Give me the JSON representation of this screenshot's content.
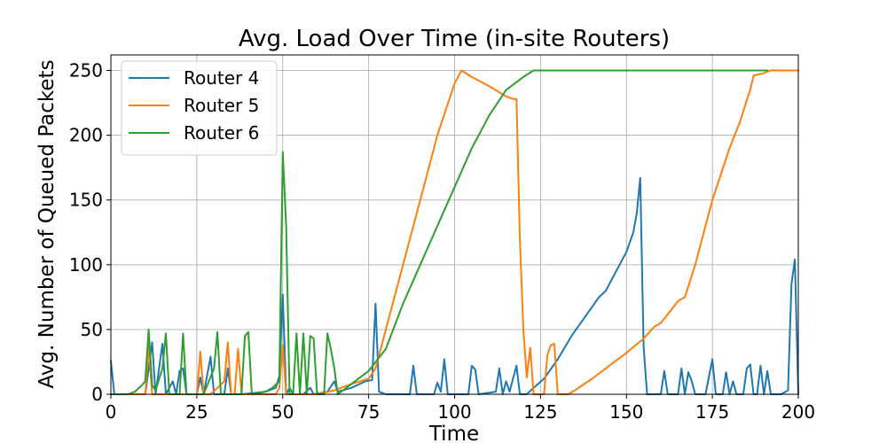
{
  "chart_data": {
    "type": "line",
    "title": "Avg. Load Over Time (in-site Routers)",
    "xlabel": "Time",
    "ylabel": "Avg. Number of Queued Packets",
    "xlim": [
      0,
      200
    ],
    "ylim": [
      0,
      262
    ],
    "x_ticks": [
      0,
      25,
      50,
      75,
      100,
      125,
      150,
      175,
      200
    ],
    "y_ticks": [
      0,
      50,
      100,
      150,
      200,
      250
    ],
    "x_tick_labels": [
      "0",
      "25",
      "50",
      "75",
      "100",
      "125",
      "150",
      "175",
      "200"
    ],
    "y_tick_labels": [
      "0",
      "50",
      "100",
      "150",
      "200",
      "250"
    ],
    "grid": true,
    "legend_position": "top-left",
    "colors": [
      "#1f77b4",
      "#ff7f0e",
      "#2ca02c"
    ],
    "series": [
      {
        "name": "Router 4",
        "color": "#1f77b4",
        "points": [
          [
            0,
            26
          ],
          [
            1,
            0
          ],
          [
            10,
            0
          ],
          [
            12,
            40
          ],
          [
            13,
            0
          ],
          [
            15,
            39
          ],
          [
            16,
            0
          ],
          [
            18,
            10
          ],
          [
            19,
            0
          ],
          [
            20,
            18
          ],
          [
            21,
            20
          ],
          [
            22,
            0
          ],
          [
            25,
            0
          ],
          [
            26,
            13
          ],
          [
            27,
            0
          ],
          [
            29,
            29
          ],
          [
            30,
            0
          ],
          [
            33,
            0
          ],
          [
            34,
            20
          ],
          [
            35,
            0
          ],
          [
            38,
            0
          ],
          [
            45,
            2
          ],
          [
            48,
            5
          ],
          [
            49,
            14
          ],
          [
            50,
            77
          ],
          [
            51,
            0
          ],
          [
            52,
            5
          ],
          [
            53,
            0
          ],
          [
            56,
            0
          ],
          [
            58,
            5
          ],
          [
            59,
            0
          ],
          [
            63,
            2
          ],
          [
            65,
            10
          ],
          [
            66,
            2
          ],
          [
            70,
            5
          ],
          [
            74,
            10
          ],
          [
            76,
            11
          ],
          [
            77,
            70
          ],
          [
            78,
            2
          ],
          [
            80,
            0
          ],
          [
            87,
            0
          ],
          [
            88,
            22
          ],
          [
            89,
            0
          ],
          [
            94,
            0
          ],
          [
            95,
            9
          ],
          [
            96,
            2
          ],
          [
            97,
            27
          ],
          [
            98,
            0
          ],
          [
            104,
            0
          ],
          [
            105,
            22
          ],
          [
            106,
            19
          ],
          [
            107,
            0
          ],
          [
            112,
            2
          ],
          [
            113,
            20
          ],
          [
            114,
            0
          ],
          [
            115,
            10
          ],
          [
            116,
            2
          ],
          [
            118,
            22
          ],
          [
            119,
            0
          ],
          [
            121,
            0
          ],
          [
            123,
            5
          ],
          [
            126,
            12
          ],
          [
            130,
            27
          ],
          [
            134,
            45
          ],
          [
            138,
            60
          ],
          [
            142,
            75
          ],
          [
            144,
            80
          ],
          [
            148,
            100
          ],
          [
            150,
            110
          ],
          [
            152,
            125
          ],
          [
            153,
            140
          ],
          [
            154,
            167
          ],
          [
            155,
            37
          ],
          [
            156,
            0
          ],
          [
            160,
            0
          ],
          [
            161,
            18
          ],
          [
            162,
            0
          ],
          [
            165,
            0
          ],
          [
            166,
            20
          ],
          [
            167,
            0
          ],
          [
            168,
            17
          ],
          [
            169,
            10
          ],
          [
            170,
            0
          ],
          [
            173,
            0
          ],
          [
            175,
            27
          ],
          [
            176,
            0
          ],
          [
            178,
            0
          ],
          [
            179,
            17
          ],
          [
            180,
            0
          ],
          [
            181,
            10
          ],
          [
            182,
            0
          ],
          [
            184,
            0
          ],
          [
            185,
            20
          ],
          [
            186,
            23
          ],
          [
            187,
            0
          ],
          [
            188,
            0
          ],
          [
            189,
            22
          ],
          [
            190,
            0
          ],
          [
            191,
            18
          ],
          [
            192,
            0
          ],
          [
            195,
            0
          ],
          [
            197,
            3
          ],
          [
            198,
            85
          ],
          [
            199,
            104
          ],
          [
            200,
            0
          ]
        ]
      },
      {
        "name": "Router 5",
        "color": "#ff7f0e",
        "points": [
          [
            0,
            0
          ],
          [
            10,
            0
          ],
          [
            11,
            38
          ],
          [
            12,
            0
          ],
          [
            25,
            0
          ],
          [
            26,
            33
          ],
          [
            27,
            0
          ],
          [
            29,
            0
          ],
          [
            33,
            10
          ],
          [
            34,
            40
          ],
          [
            35,
            0
          ],
          [
            36,
            0
          ],
          [
            37,
            35
          ],
          [
            38,
            0
          ],
          [
            48,
            0
          ],
          [
            49,
            5
          ],
          [
            50,
            38
          ],
          [
            51,
            0
          ],
          [
            52,
            0
          ],
          [
            60,
            0
          ],
          [
            65,
            3
          ],
          [
            70,
            8
          ],
          [
            75,
            12
          ],
          [
            77,
            20
          ],
          [
            80,
            50
          ],
          [
            85,
            100
          ],
          [
            90,
            150
          ],
          [
            95,
            200
          ],
          [
            100,
            240
          ],
          [
            102,
            250
          ],
          [
            105,
            245
          ],
          [
            110,
            238
          ],
          [
            115,
            230
          ],
          [
            117,
            228
          ],
          [
            118,
            228
          ],
          [
            119,
            120
          ],
          [
            120,
            50
          ],
          [
            121,
            13
          ],
          [
            122,
            36
          ],
          [
            123,
            0
          ],
          [
            126,
            0
          ],
          [
            127,
            30
          ],
          [
            128,
            38
          ],
          [
            129,
            39
          ],
          [
            130,
            0
          ],
          [
            133,
            0
          ],
          [
            135,
            3
          ],
          [
            140,
            12
          ],
          [
            145,
            22
          ],
          [
            150,
            32
          ],
          [
            155,
            43
          ],
          [
            158,
            52
          ],
          [
            160,
            55
          ],
          [
            163,
            65
          ],
          [
            165,
            72
          ],
          [
            167,
            75
          ],
          [
            170,
            100
          ],
          [
            175,
            150
          ],
          [
            180,
            190
          ],
          [
            183,
            210
          ],
          [
            185,
            227
          ],
          [
            186,
            235
          ],
          [
            187,
            246
          ],
          [
            190,
            248
          ],
          [
            192,
            250
          ],
          [
            200,
            250
          ]
        ]
      },
      {
        "name": "Router 6",
        "color": "#2ca02c",
        "points": [
          [
            0,
            0
          ],
          [
            5,
            0
          ],
          [
            7,
            2
          ],
          [
            9,
            7
          ],
          [
            10,
            10
          ],
          [
            11,
            50
          ],
          [
            12,
            7
          ],
          [
            13,
            3
          ],
          [
            15,
            20
          ],
          [
            16,
            47
          ],
          [
            17,
            0
          ],
          [
            20,
            0
          ],
          [
            21,
            47
          ],
          [
            22,
            0
          ],
          [
            27,
            0
          ],
          [
            30,
            20
          ],
          [
            31,
            48
          ],
          [
            32,
            0
          ],
          [
            38,
            0
          ],
          [
            39,
            45
          ],
          [
            40,
            48
          ],
          [
            41,
            0
          ],
          [
            45,
            2
          ],
          [
            47,
            5
          ],
          [
            49,
            10
          ],
          [
            50,
            187
          ],
          [
            51,
            130
          ],
          [
            52,
            0
          ],
          [
            53,
            0
          ],
          [
            54,
            47
          ],
          [
            55,
            0
          ],
          [
            56,
            47
          ],
          [
            57,
            0
          ],
          [
            58,
            45
          ],
          [
            59,
            43
          ],
          [
            60,
            0
          ],
          [
            62,
            0
          ],
          [
            63,
            47
          ],
          [
            64,
            35
          ],
          [
            65,
            20
          ],
          [
            66,
            0
          ],
          [
            70,
            8
          ],
          [
            75,
            18
          ],
          [
            80,
            35
          ],
          [
            85,
            70
          ],
          [
            90,
            100
          ],
          [
            95,
            130
          ],
          [
            100,
            160
          ],
          [
            105,
            190
          ],
          [
            110,
            215
          ],
          [
            115,
            235
          ],
          [
            120,
            245
          ],
          [
            123,
            250
          ],
          [
            130,
            250
          ],
          [
            150,
            250
          ],
          [
            170,
            250
          ],
          [
            191,
            250
          ]
        ]
      }
    ]
  }
}
